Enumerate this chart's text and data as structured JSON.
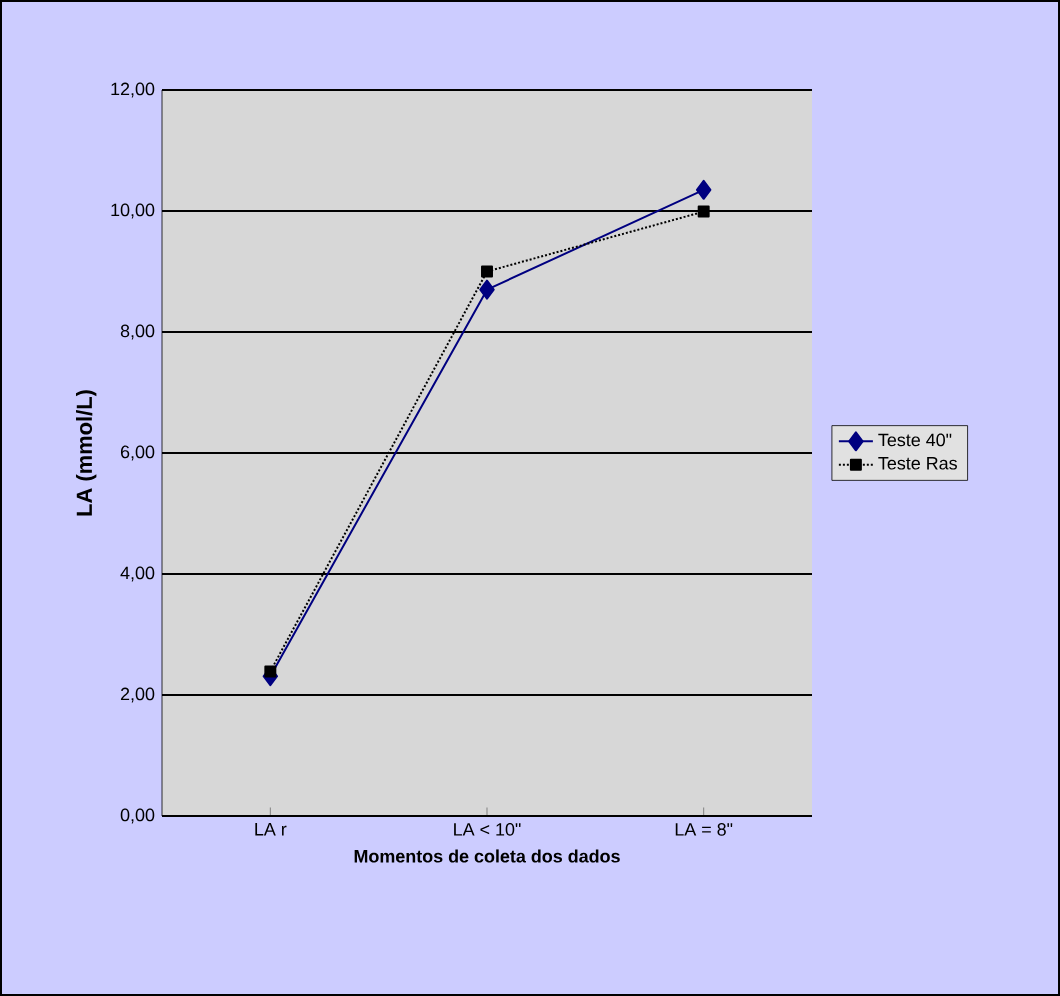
{
  "chart_data": {
    "type": "line",
    "xlabel": "Momentos de coleta dos dados",
    "ylabel": "LA (mmol/L)",
    "categories": [
      "LA r",
      "LA < 10\"",
      "LA = 8\""
    ],
    "series": [
      {
        "name": "Teste 40\"",
        "color": "#000080",
        "marker": "diamond",
        "line_style": "solid",
        "values": [
          2.31,
          8.7,
          10.35
        ]
      },
      {
        "name": "Teste Ras",
        "color": "#000000",
        "marker": "square",
        "line_style": "dotted",
        "values": [
          2.39,
          9.0,
          9.99
        ]
      }
    ],
    "ylim": [
      0,
      12
    ],
    "yticks": [
      {
        "value": 0,
        "label": "0,00"
      },
      {
        "value": 2,
        "label": "2,00"
      },
      {
        "value": 4,
        "label": "4,00"
      },
      {
        "value": 6,
        "label": "6,00"
      },
      {
        "value": 8,
        "label": "8,00"
      },
      {
        "value": 10,
        "label": "10,00"
      },
      {
        "value": 12,
        "label": "12,00"
      }
    ],
    "grid": "y",
    "legend": "right"
  }
}
